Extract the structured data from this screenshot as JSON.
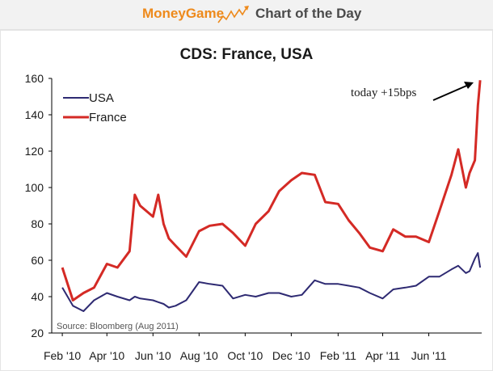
{
  "header": {
    "brand": "MoneyGame",
    "section": "Chart of the Day",
    "icon": "trend-line-arrow-icon",
    "brand_color": "#ee8a1c"
  },
  "chart_data": {
    "type": "line",
    "title": "CDS: France, USA",
    "xlabel": "",
    "ylabel": "",
    "ylim": [
      20,
      160
    ],
    "yticks": [
      20,
      40,
      60,
      80,
      100,
      120,
      140,
      160
    ],
    "xticks": [
      "Feb '10",
      "Apr '10",
      "Jun '10",
      "Aug '10",
      "Oct '10",
      "Dec '10",
      "Feb '11",
      "Apr '11",
      "Jun '11"
    ],
    "x_dates": [
      "2010-02-01",
      "2010-02-15",
      "2010-03-01",
      "2010-03-15",
      "2010-04-01",
      "2010-04-15",
      "2010-05-01",
      "2010-05-08",
      "2010-05-15",
      "2010-06-01",
      "2010-06-08",
      "2010-06-15",
      "2010-06-22",
      "2010-07-01",
      "2010-07-15",
      "2010-08-01",
      "2010-08-15",
      "2010-09-01",
      "2010-09-15",
      "2010-10-01",
      "2010-10-15",
      "2010-11-01",
      "2010-11-15",
      "2010-12-01",
      "2010-12-15",
      "2011-01-01",
      "2011-01-15",
      "2011-02-01",
      "2011-02-15",
      "2011-03-01",
      "2011-03-15",
      "2011-04-01",
      "2011-04-15",
      "2011-05-01",
      "2011-05-15",
      "2011-06-01",
      "2011-06-15",
      "2011-07-01",
      "2011-07-10",
      "2011-07-20",
      "2011-07-25",
      "2011-08-01",
      "2011-08-05",
      "2011-08-08"
    ],
    "series": [
      {
        "name": "USA",
        "color": "#2e2a72",
        "values": [
          45,
          35,
          32,
          38,
          42,
          40,
          38,
          40,
          39,
          38,
          37,
          36,
          34,
          35,
          38,
          48,
          47,
          46,
          39,
          41,
          40,
          42,
          42,
          40,
          41,
          49,
          47,
          47,
          46,
          45,
          42,
          39,
          44,
          45,
          46,
          51,
          51,
          55,
          57,
          53,
          54,
          61,
          64,
          56
        ]
      },
      {
        "name": "France",
        "color": "#d42a25",
        "values": [
          56,
          38,
          42,
          45,
          58,
          56,
          65,
          96,
          90,
          84,
          96,
          80,
          72,
          68,
          62,
          76,
          79,
          80,
          75,
          68,
          80,
          87,
          98,
          104,
          108,
          107,
          92,
          91,
          82,
          75,
          67,
          65,
          77,
          73,
          73,
          70,
          87,
          107,
          121,
          100,
          108,
          115,
          145,
          159
        ]
      }
    ],
    "legend": "top-left",
    "grid": false,
    "annotation": "today +15bps",
    "source": "Source: Bloomberg (Aug 2011)"
  }
}
